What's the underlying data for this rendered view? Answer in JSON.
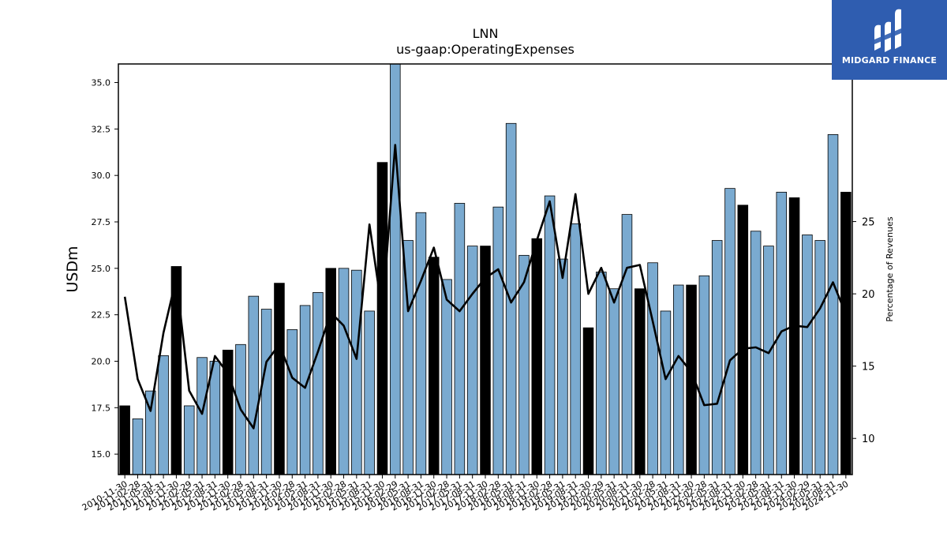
{
  "brand": {
    "name": "MIDGARD FINANCE",
    "bg_color": "#2f5db0"
  },
  "chart_data": {
    "type": "bar",
    "title": "LNN",
    "subtitle": "us-gaap:OperatingExpenses",
    "ylabel": "USDm",
    "y2label": "Percentage of Revenues",
    "ylim": [
      13.9,
      36.0
    ],
    "y2lim": [
      7.5,
      35.9
    ],
    "yticks": [
      15.0,
      17.5,
      20.0,
      22.5,
      25.0,
      27.5,
      30.0,
      32.5,
      35.0
    ],
    "y2ticks": [
      10,
      15,
      20,
      25
    ],
    "bar_color": "#7aaad0",
    "highlight_color": "#000000",
    "line_color": "#000000",
    "categories": [
      "2010-11-30",
      "2011-02-28",
      "2011-05-31",
      "2011-08-31",
      "2011-11-30",
      "2012-02-29",
      "2012-05-31",
      "2012-08-31",
      "2012-11-30",
      "2013-02-28",
      "2013-05-31",
      "2013-08-31",
      "2013-11-30",
      "2014-02-28",
      "2014-05-31",
      "2014-08-31",
      "2014-11-30",
      "2015-02-28",
      "2015-05-31",
      "2015-08-31",
      "2015-11-30",
      "2016-02-29",
      "2016-05-31",
      "2016-08-31",
      "2016-11-30",
      "2017-02-28",
      "2017-05-31",
      "2017-08-31",
      "2017-11-30",
      "2018-02-28",
      "2018-05-31",
      "2018-08-31",
      "2018-11-30",
      "2019-02-28",
      "2019-05-31",
      "2019-08-31",
      "2019-11-30",
      "2020-02-29",
      "2020-05-31",
      "2020-08-31",
      "2020-11-30",
      "2021-02-28",
      "2021-05-31",
      "2021-08-31",
      "2021-11-30",
      "2022-02-28",
      "2022-05-31",
      "2022-08-31",
      "2022-11-30",
      "2023-02-28",
      "2023-05-31",
      "2023-08-31",
      "2023-11-30",
      "2024-02-29",
      "2024-05-31",
      "2024-08-31",
      "2024-11-30"
    ],
    "series": [
      {
        "values": [
          17.6,
          16.9,
          18.4,
          20.3,
          25.1,
          17.6,
          20.2,
          20.0,
          20.6,
          20.9,
          23.5,
          22.8,
          24.2,
          21.7,
          23.0,
          23.7,
          25.0,
          25.0,
          24.9,
          22.7,
          30.7,
          36.3,
          26.5,
          28.0,
          25.6,
          24.4,
          28.5,
          26.2,
          26.2,
          28.3,
          32.8,
          25.7,
          26.6,
          28.9,
          25.5,
          27.4,
          21.8,
          24.8,
          23.9,
          27.9,
          23.9,
          25.3,
          22.7,
          24.1,
          24.1,
          24.6,
          26.5,
          29.3,
          28.4,
          27.0,
          26.2,
          29.1,
          28.8,
          26.8,
          26.5,
          32.2,
          29.1
        ]
      },
      {
        "values": [
          19.8,
          14.1,
          11.9,
          17.3,
          21.1,
          13.3,
          11.7,
          15.7,
          14.5,
          12.0,
          10.7,
          15.3,
          16.5,
          14.2,
          13.5,
          16.0,
          18.7,
          17.8,
          15.5,
          24.8,
          18.7,
          30.3,
          18.8,
          20.9,
          23.2,
          19.6,
          18.8,
          20.0,
          21.1,
          21.7,
          19.4,
          20.8,
          23.7,
          26.4,
          21.1,
          26.9,
          20.0,
          21.8,
          19.4,
          21.8,
          22.0,
          18.1,
          14.1,
          15.7,
          14.6,
          12.3,
          12.4,
          15.4,
          16.2,
          16.3,
          15.9,
          17.4,
          17.8,
          17.7,
          19.0,
          20.8,
          18.6
        ]
      }
    ],
    "highlight_indices": [
      0,
      4,
      8,
      12,
      16,
      20,
      24,
      28,
      32,
      36,
      40,
      44,
      48,
      52,
      56
    ]
  }
}
